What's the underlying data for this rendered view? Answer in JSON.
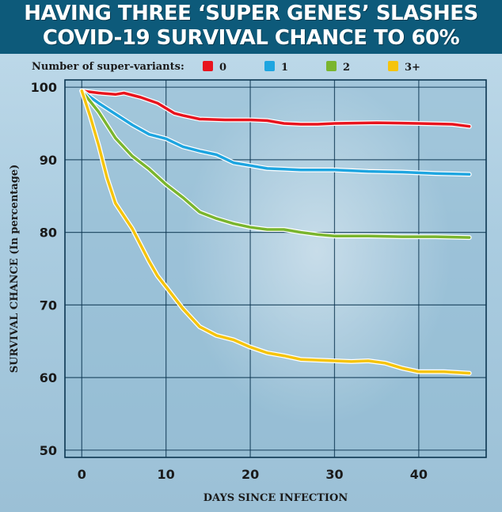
{
  "title_lines": [
    "HAVING THREE ‘SUPER GENES’ SLASHES",
    "COVID-19 SURVIVAL CHANCE TO 60%"
  ],
  "chart_data": {
    "type": "line",
    "title": "HAVING THREE ‘SUPER GENES’ SLASHES COVID-19 SURVIVAL CHANCE TO 60%",
    "xlabel": "DAYS SINCE INFECTION",
    "ylabel": "SURVIVAL CHANCE (In percentage)",
    "xlim": [
      -2,
      48
    ],
    "ylim": [
      49,
      101
    ],
    "xticks": [
      0,
      10,
      20,
      30,
      40
    ],
    "yticks": [
      50,
      60,
      70,
      80,
      90,
      100
    ],
    "grid": true,
    "legend_title": "Number of super-variants:",
    "legend_position": "top",
    "series": [
      {
        "name": "0",
        "color": "#e8141e",
        "x": [
          0,
          2,
          4,
          5,
          7,
          9,
          11,
          12,
          14,
          17,
          20,
          22,
          24,
          26,
          28,
          30,
          35,
          40,
          44,
          46
        ],
        "y": [
          99.5,
          99.2,
          99.0,
          99.2,
          98.6,
          97.8,
          96.4,
          96.1,
          95.6,
          95.5,
          95.5,
          95.4,
          95.0,
          94.9,
          94.9,
          95.0,
          95.1,
          95.0,
          94.9,
          94.6
        ]
      },
      {
        "name": "1",
        "color": "#1ea5e0",
        "x": [
          0,
          2,
          4,
          6,
          8,
          10,
          12,
          14,
          16,
          18,
          20,
          22,
          24,
          26,
          28,
          30,
          34,
          38,
          42,
          46
        ],
        "y": [
          99.5,
          97.8,
          96.3,
          94.8,
          93.5,
          92.9,
          91.8,
          91.2,
          90.7,
          89.6,
          89.2,
          88.8,
          88.7,
          88.6,
          88.6,
          88.6,
          88.4,
          88.3,
          88.1,
          88.0
        ]
      },
      {
        "name": "2",
        "color": "#7ab52e",
        "x": [
          0,
          2,
          4,
          6,
          8,
          10,
          12,
          14,
          16,
          18,
          20,
          22,
          24,
          26,
          28,
          30,
          34,
          38,
          42,
          46
        ],
        "y": [
          99.5,
          96.6,
          93.0,
          90.5,
          88.7,
          86.6,
          84.8,
          82.8,
          81.9,
          81.2,
          80.7,
          80.4,
          80.4,
          80.0,
          79.7,
          79.5,
          79.5,
          79.4,
          79.4,
          79.3
        ]
      },
      {
        "name": "3+",
        "color": "#f5c40d",
        "x": [
          0,
          1,
          2,
          3,
          4,
          6,
          8,
          9,
          10,
          12,
          14,
          16,
          18,
          20,
          22,
          24,
          26,
          30,
          32,
          34,
          36,
          38,
          40,
          43,
          46
        ],
        "y": [
          99.5,
          96.0,
          92.0,
          87.5,
          84.0,
          80.5,
          76.0,
          74.0,
          72.5,
          69.5,
          67.0,
          65.8,
          65.2,
          64.2,
          63.4,
          63.0,
          62.5,
          62.3,
          62.2,
          62.3,
          62.0,
          61.3,
          60.8,
          60.8,
          60.6
        ]
      }
    ]
  }
}
